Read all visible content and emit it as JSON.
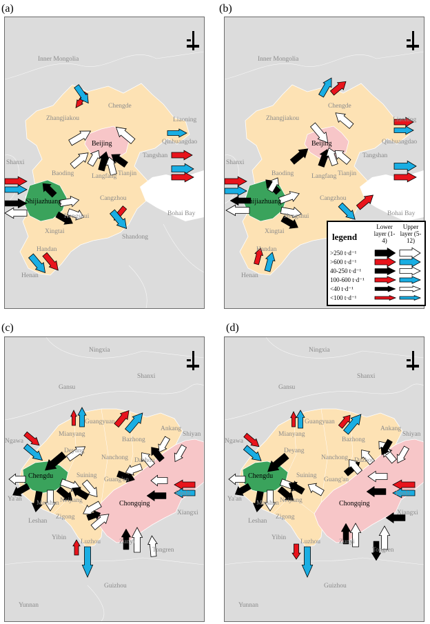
{
  "panels": [
    {
      "label": "(a)",
      "places": [
        "Inner Mongolia",
        "Zhangjiakou",
        "Chengde",
        "Liaoning",
        "Qinhuangdao",
        "Beijing",
        "Tangshan",
        "Shanxi",
        "Baoding",
        "Langfang",
        "Tianjin",
        "Shijiazhuang",
        "Cangzhou",
        "Bohai Bay",
        "Hengshui",
        "Xingtai",
        "Shandong",
        "Handan",
        "Henan"
      ]
    },
    {
      "label": "(b)",
      "places": [
        "Inner Mongolia",
        "Zhangjiakou",
        "Chengde",
        "Liaoning",
        "Qinhuangdao",
        "Beijing",
        "Tangshan",
        "Shanxi",
        "Baoding",
        "Langfang",
        "Tianjin",
        "Shijiazhuang",
        "Cangzhou",
        "Bohai Bay",
        "Hengshui",
        "Xingtai",
        "Handan",
        "Henan"
      ]
    },
    {
      "label": "(c)",
      "places": [
        "Ningxia",
        "Gansu",
        "Shanxi",
        "Ngawa",
        "Guangyuan",
        "Mianyang",
        "Bazhong",
        "Ankang",
        "Shiyan",
        "Deyang",
        "Nanchong",
        "Dazhou",
        "Chengdu",
        "Suining",
        "Guang'an",
        "Ya'an",
        "Meishan",
        "Neijiang",
        "Chongqing",
        "Enshi",
        "Leshan",
        "Zigong",
        "Xiangxi",
        "Yibin",
        "Luzhou",
        "Zunyi",
        "Tongren",
        "Guizhou",
        "Yunnan"
      ]
    },
    {
      "label": "(d)",
      "places": [
        "Ningxia",
        "Gansu",
        "Shanxi",
        "Ngawa",
        "Guangyuan",
        "Mianyang",
        "Bazhong",
        "Ankang",
        "Shiyan",
        "Deyang",
        "Nanchong",
        "Dazhou",
        "Chengdu",
        "Suining",
        "Guang'an",
        "Ya'an",
        "Meishan",
        "Neijiang",
        "Chongqing",
        "Enshi",
        "Leshan",
        "Zigong",
        "Xiangxi",
        "Yibin",
        "Luzhou",
        "Zunyi",
        "Tongren",
        "Guizhou",
        "Yunnan"
      ]
    }
  ],
  "legend": {
    "title": "legend",
    "lower_layer": "Lower layer (1-4)",
    "upper_layer": "Upper layer (5-12)",
    "rows": [
      ">250 t·d⁻¹",
      ">600 t·d⁻¹",
      "40-250 t·d⁻¹",
      "100-600 t·d⁻¹",
      "<40 t·d⁻¹",
      "<100 t·d⁻¹"
    ]
  },
  "colors": {
    "lower_layer": "#000000",
    "lower_red": "#e8141c",
    "upper_layer": "#ffffff",
    "upper_blue": "#1aaee3",
    "source_city": "#3aa35c",
    "receptor_city": "#f7c6c8",
    "region": "#fde2b4",
    "background": "#dcdcdc"
  }
}
